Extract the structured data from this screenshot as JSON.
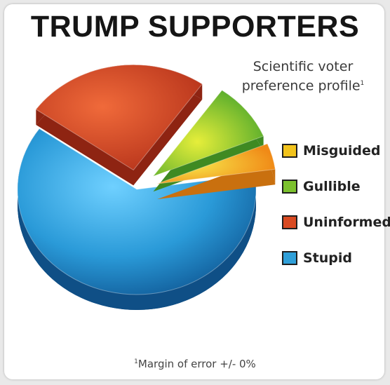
{
  "chart_data": {
    "type": "pie",
    "title": "TRUMP SUPPORTERS",
    "subtitle_line1": "Scientific voter",
    "subtitle_line2": "preference profile",
    "subtitle_sup": "1",
    "footnote_sup": "1",
    "footnote": "Margin of error +/- 0%",
    "legend_position": "right",
    "slices": [
      {
        "label": "Misguided",
        "value": 4,
        "color": "#f2c31c"
      },
      {
        "label": "Gullible",
        "value": 9,
        "color": "#7cc12e"
      },
      {
        "label": "Uninformed",
        "value": 25,
        "color": "#d94a22"
      },
      {
        "label": "Stupid",
        "value": 62,
        "color": "#2f9fd8"
      }
    ]
  }
}
